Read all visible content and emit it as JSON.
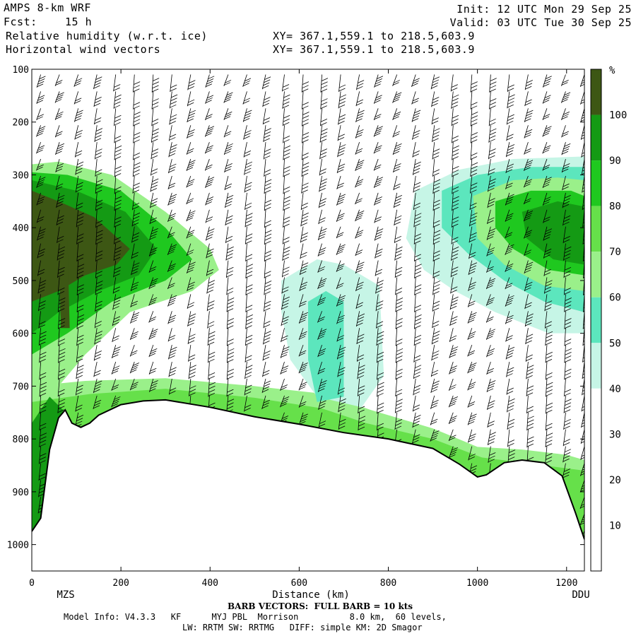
{
  "header": {
    "model": "AMPS 8-km WRF",
    "fcst_label": "Fcst:",
    "fcst_value": "15 h",
    "field1": "Relative humidity (w.r.t. ice)",
    "field2": "Horizontal wind vectors",
    "xy1": "XY= 367.1,559.1 to 218.5,603.9",
    "xy2": "XY= 367.1,559.1 to 218.5,603.9",
    "init": "Init: 12 UTC Mon 29 Sep 25",
    "valid": "Valid: 03 UTC Tue 30 Sep 25"
  },
  "footer": {
    "barb_note": "BARB VECTORS:  FULL BARB = 10 kts",
    "model_info": "Model Info: V4.3.3   KF      MYJ PBL  Morrison          8.0 km,  60 levels,",
    "model_info2": "LW: RRTM SW: RRTMG   DIFF: simple KM: 2D Smagor"
  },
  "colors": {
    "rh_40": "#c6f5e6",
    "rh_50": "#5ce6bd",
    "rh_60": "#9af08a",
    "rh_70": "#66e04a",
    "rh_80": "#1fc81f",
    "rh_90": "#149a14",
    "rh_100": "#3d5714",
    "terrain_line": "#000000"
  },
  "chart_data": {
    "type": "cross-section",
    "xlabel": "Distance (km)",
    "ylabel": "",
    "xlim": [
      0,
      1240
    ],
    "ylim": [
      1050,
      100
    ],
    "x_ticks": [
      0,
      200,
      400,
      600,
      800,
      1000,
      1200
    ],
    "y_ticks": [
      100,
      200,
      300,
      400,
      500,
      600,
      700,
      800,
      900,
      1000
    ],
    "x_endpoints": {
      "left": "MZS",
      "right": "DDU"
    },
    "colorbar": {
      "unit": "%",
      "levels": [
        10,
        20,
        30,
        40,
        50,
        60,
        70,
        80,
        90,
        100
      ],
      "fill_bands": [
        {
          "from": 30,
          "to": 40,
          "color": "#ffffff"
        },
        {
          "from": 40,
          "to": 50,
          "color": "#c6f5e6"
        },
        {
          "from": 50,
          "to": 60,
          "color": "#5ce6bd"
        },
        {
          "from": 60,
          "to": 70,
          "color": "#9af08a"
        },
        {
          "from": 70,
          "to": 80,
          "color": "#66e04a"
        },
        {
          "from": 80,
          "to": 90,
          "color": "#1fc81f"
        },
        {
          "from": 90,
          "to": 100,
          "color": "#149a14"
        },
        {
          "from": 100,
          "to": 110,
          "color": "#3d5714"
        }
      ]
    },
    "terrain_pressure": [
      [
        0,
        975
      ],
      [
        20,
        950
      ],
      [
        40,
        820
      ],
      [
        60,
        760
      ],
      [
        75,
        745
      ],
      [
        90,
        770
      ],
      [
        110,
        778
      ],
      [
        130,
        770
      ],
      [
        150,
        755
      ],
      [
        200,
        735
      ],
      [
        250,
        728
      ],
      [
        300,
        726
      ],
      [
        400,
        740
      ],
      [
        500,
        758
      ],
      [
        600,
        772
      ],
      [
        700,
        788
      ],
      [
        800,
        800
      ],
      [
        900,
        818
      ],
      [
        960,
        848
      ],
      [
        1000,
        872
      ],
      [
        1020,
        868
      ],
      [
        1060,
        845
      ],
      [
        1100,
        840
      ],
      [
        1150,
        845
      ],
      [
        1190,
        870
      ],
      [
        1220,
        940
      ],
      [
        1240,
        990
      ]
    ]
  }
}
